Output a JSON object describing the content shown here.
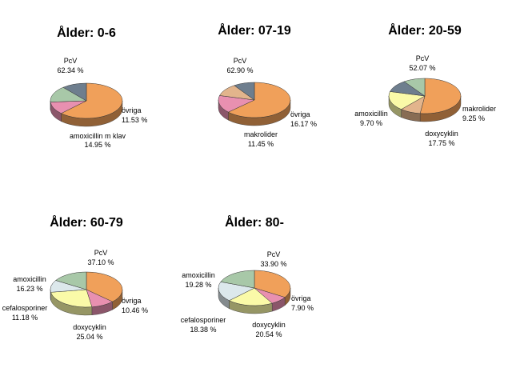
{
  "colors": {
    "PcV": "#F0A05A",
    "övriga": "#E890B0",
    "amoxicillin": "#A8C8A8",
    "amoxicillin m klav": "#A8C8A8",
    "makrolider": "#E2B48C",
    "doxycyklin": "#FAFAA8",
    "cefalosporiner": "#DCE8EC",
    "gap": "#6E7E8E"
  },
  "chart_data": [
    {
      "type": "pie",
      "title": "Ålder: 0-6",
      "slices": [
        {
          "label": "PcV",
          "value": 62.34,
          "value_text": "62.34 %"
        },
        {
          "label": "övriga",
          "value": 11.53,
          "value_text": "11.53 %"
        },
        {
          "label": "amoxicillin m klav",
          "value": 14.95,
          "value_text": "14.95 %"
        },
        {
          "label": "",
          "value": 11.18,
          "value_text": ""
        }
      ]
    },
    {
      "type": "pie",
      "title": "Ålder: 07-19",
      "slices": [
        {
          "label": "PcV",
          "value": 62.9,
          "value_text": "62.90 %"
        },
        {
          "label": "övriga",
          "value": 16.17,
          "value_text": "16.17 %"
        },
        {
          "label": "makrolider",
          "value": 11.45,
          "value_text": "11.45 %"
        },
        {
          "label": "",
          "value": 9.48,
          "value_text": ""
        }
      ]
    },
    {
      "type": "pie",
      "title": "Ålder: 20-59",
      "slices": [
        {
          "label": "PcV",
          "value": 52.07,
          "value_text": "52.07 %"
        },
        {
          "label": "makrolider",
          "value": 9.25,
          "value_text": "9.25 %"
        },
        {
          "label": "doxycyklin",
          "value": 17.75,
          "value_text": "17.75 %"
        },
        {
          "label": "",
          "value": 11.23,
          "value_text": ""
        },
        {
          "label": "amoxicillin",
          "value": 9.7,
          "value_text": "9.70 %"
        }
      ]
    },
    {
      "type": "pie",
      "title": "Ålder: 60-79",
      "slices": [
        {
          "label": "PcV",
          "value": 37.1,
          "value_text": "37.10 %"
        },
        {
          "label": "övriga",
          "value": 10.46,
          "value_text": "10.46 %"
        },
        {
          "label": "doxycyklin",
          "value": 25.04,
          "value_text": "25.04 %"
        },
        {
          "label": "cefalosporiner",
          "value": 11.18,
          "value_text": "11.18 %"
        },
        {
          "label": "amoxicillin",
          "value": 16.23,
          "value_text": "16.23 %"
        }
      ]
    },
    {
      "type": "pie",
      "title": "Ålder: 80-",
      "slices": [
        {
          "label": "PcV",
          "value": 33.9,
          "value_text": "33.90 %"
        },
        {
          "label": "övriga",
          "value": 7.9,
          "value_text": "7.90 %"
        },
        {
          "label": "doxycyklin",
          "value": 20.54,
          "value_text": "20.54 %"
        },
        {
          "label": "cefalosporiner",
          "value": 18.38,
          "value_text": "18.38 %"
        },
        {
          "label": "amoxicillin",
          "value": 19.28,
          "value_text": "19.28 %"
        }
      ]
    }
  ]
}
